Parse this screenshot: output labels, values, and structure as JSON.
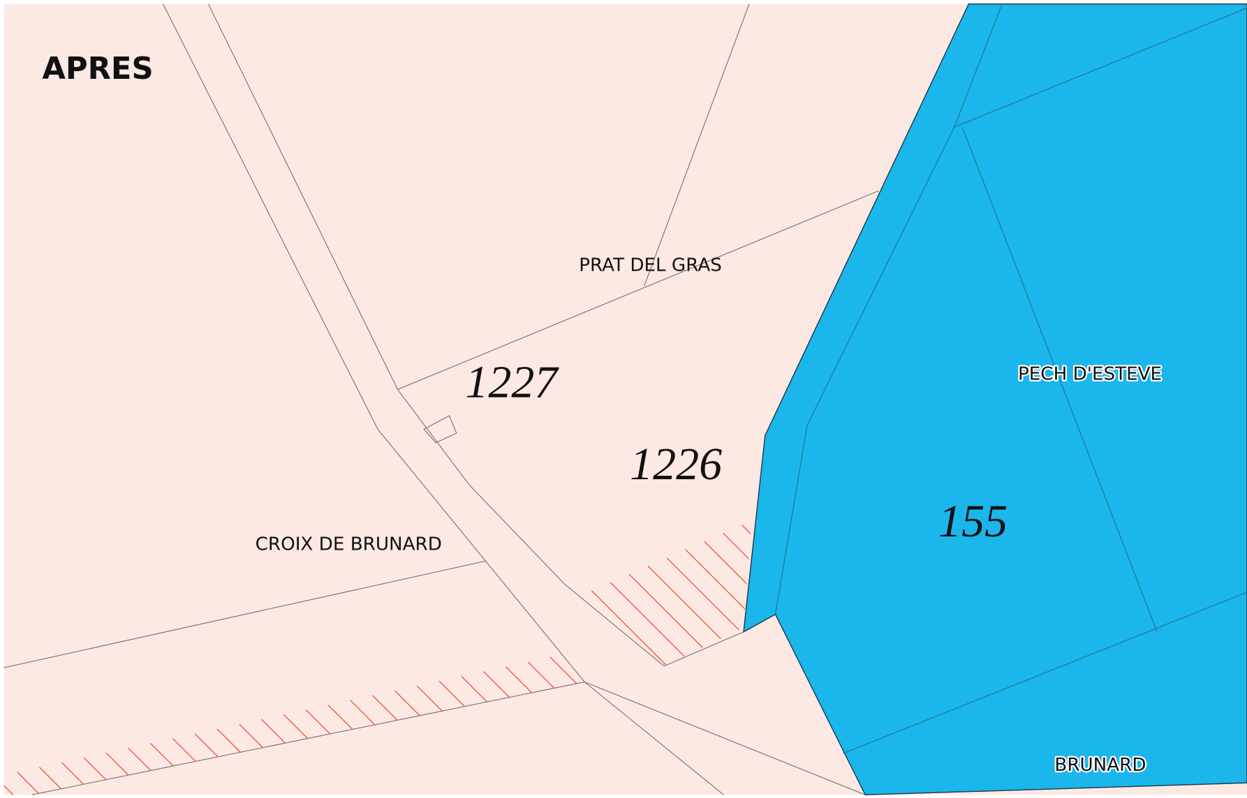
{
  "title": "APRES",
  "place_names": [
    "PRAT DEL GRAS",
    "CROIX DE BRUNARD",
    "PECH D'ESTEVE",
    "BRUNARD"
  ],
  "parcels": [
    "1227",
    "1226",
    "155"
  ]
}
